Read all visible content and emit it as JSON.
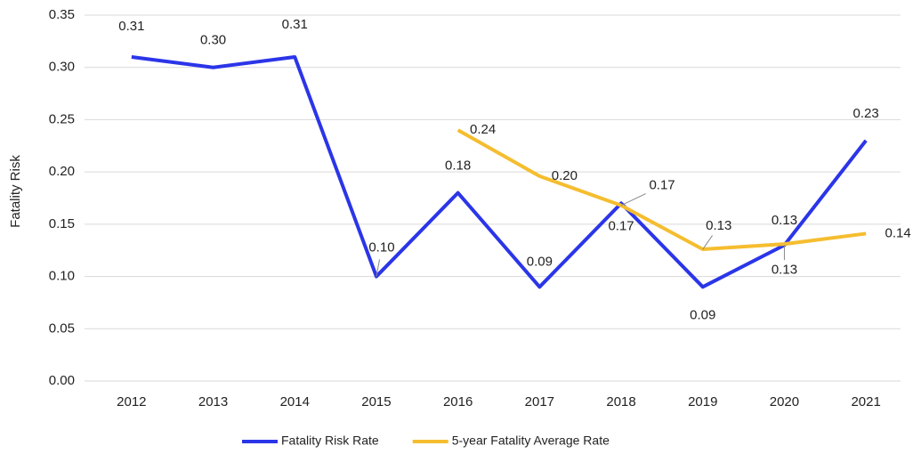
{
  "chart_data": {
    "type": "line",
    "y_label": "Fatality Risk",
    "categories": [
      "2012",
      "2013",
      "2014",
      "2015",
      "2016",
      "2017",
      "2018",
      "2019",
      "2020",
      "2021"
    ],
    "series": [
      {
        "name": "Fatality Risk Rate",
        "color": "#2b35e8",
        "values": [
          0.31,
          0.3,
          0.31,
          0.1,
          0.18,
          0.09,
          0.17,
          0.09,
          0.13,
          0.23
        ],
        "value_labels": [
          "0.31",
          "0.30",
          "0.31",
          "0.10",
          "0.18",
          "0.09",
          "0.17",
          "0.09",
          "0.13",
          "0.23"
        ]
      },
      {
        "name": "5-year Fatality Average Rate",
        "color": "#f5bd2f",
        "values": [
          null,
          null,
          null,
          null,
          0.24,
          0.196,
          0.168,
          0.126,
          0.131,
          0.141
        ],
        "value_labels": [
          null,
          null,
          null,
          null,
          "0.24",
          "0.20",
          "0.17",
          "0.13",
          "0.13",
          "0.14"
        ]
      }
    ],
    "ylim": [
      0,
      0.35
    ],
    "yticks": [
      {
        "value": 0,
        "label": "0.00"
      },
      {
        "value": 0.05,
        "label": "0.05"
      },
      {
        "value": 0.1,
        "label": "0.10"
      },
      {
        "value": 0.15,
        "label": "0.15"
      },
      {
        "value": 0.2,
        "label": "0.20"
      },
      {
        "value": 0.25,
        "label": "0.25"
      },
      {
        "value": 0.3,
        "label": "0.30"
      },
      {
        "value": 0.35,
        "label": "0.35"
      }
    ],
    "grid": true,
    "legend": "bottom"
  }
}
